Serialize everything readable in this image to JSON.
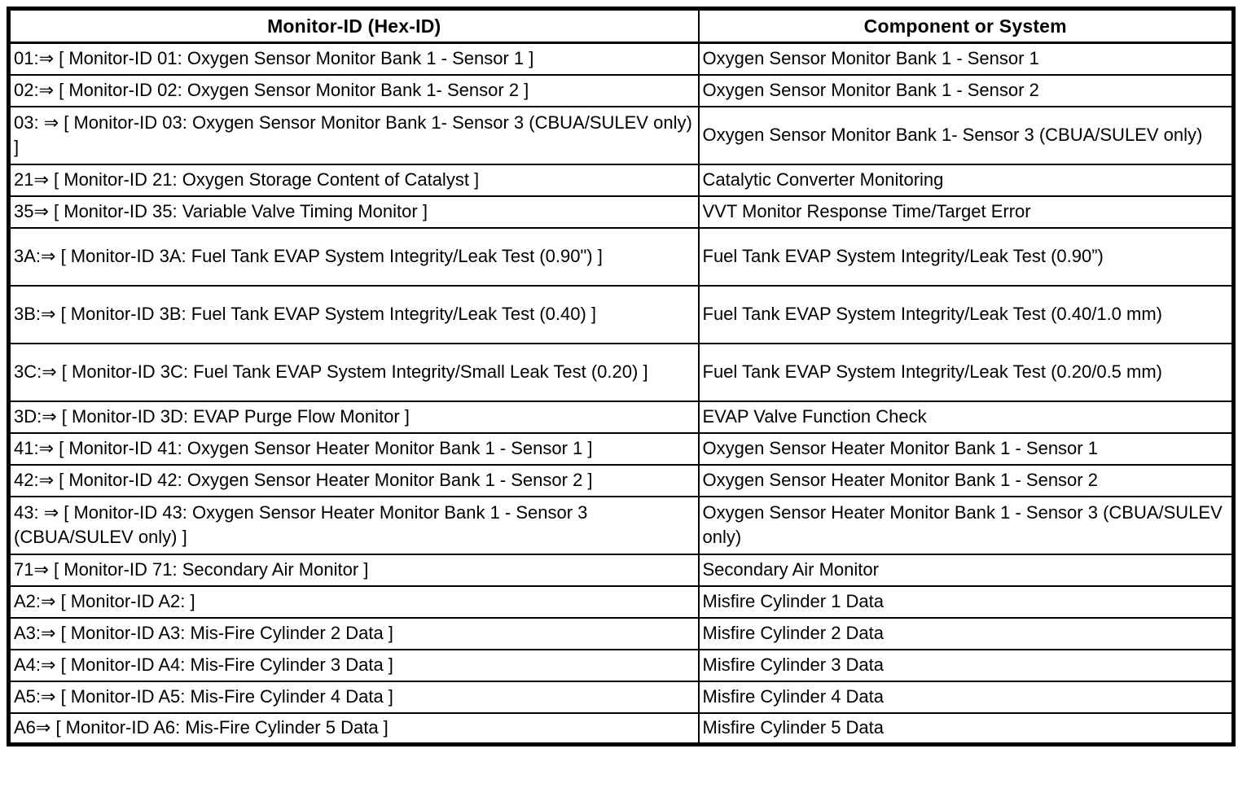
{
  "page": {
    "background_color": "#ffffff",
    "text_color": "#000000",
    "border_color": "#000000"
  },
  "table": {
    "columns": [
      "Monitor-ID (Hex-ID)",
      "Component or System"
    ],
    "rows": [
      {
        "monitor_id": "01:⇒ [ Monitor-ID 01: Oxygen Sensor Monitor Bank 1 - Sensor 1 ]",
        "component": "Oxygen Sensor Monitor Bank 1 - Sensor 1"
      },
      {
        "monitor_id": "02:⇒ [ Monitor-ID 02: Oxygen Sensor Monitor Bank 1- Sensor 2 ]",
        "component": "Oxygen Sensor Monitor Bank 1 - Sensor 2"
      },
      {
        "monitor_id": "03: ⇒ [ Monitor-ID 03: Oxygen Sensor Monitor Bank 1- Sensor 3 (CBUA/SULEV only) ]",
        "component": "Oxygen Sensor Monitor Bank 1- Sensor 3 (CBUA/SULEV only)"
      },
      {
        "monitor_id": "21⇒ [ Monitor-ID 21: Oxygen Storage Content of Catalyst ]",
        "component": "Catalytic Converter Monitoring"
      },
      {
        "monitor_id": "35⇒ [ Monitor-ID 35: Variable Valve Timing Monitor ]",
        "component": "VVT Monitor Response Time/Target Error"
      },
      {
        "monitor_id": "3A:⇒ [ Monitor-ID 3A: Fuel Tank EVAP System Integrity/Leak Test (0.90\") ]",
        "component": "Fuel Tank EVAP System Integrity/Leak Test (0.90”)"
      },
      {
        "monitor_id": "3B:⇒ [ Monitor-ID 3B: Fuel Tank EVAP System Integrity/Leak Test (0.40) ]",
        "component": "Fuel Tank EVAP System Integrity/Leak Test (0.40/1.0 mm)"
      },
      {
        "monitor_id": "3C:⇒ [ Monitor-ID 3C: Fuel Tank EVAP System Integrity/Small Leak Test (0.20) ]",
        "component": "Fuel Tank EVAP System Integrity/Leak Test (0.20/0.5 mm)"
      },
      {
        "monitor_id": "3D:⇒ [ Monitor-ID 3D: EVAP Purge Flow Monitor ]",
        "component": "EVAP Valve Function Check"
      },
      {
        "monitor_id": "41:⇒ [ Monitor-ID 41: Oxygen Sensor Heater Monitor Bank 1 - Sensor 1 ]",
        "component": "Oxygen Sensor Heater Monitor Bank 1 - Sensor 1"
      },
      {
        "monitor_id": "42:⇒ [ Monitor-ID 42: Oxygen Sensor Heater Monitor Bank 1 - Sensor 2 ]",
        "component": "Oxygen Sensor Heater Monitor Bank 1 - Sensor 2"
      },
      {
        "monitor_id": "43: ⇒ [ Monitor-ID 43: Oxygen Sensor Heater Monitor Bank 1 - Sensor 3 (CBUA/SULEV only) ]",
        "component": "Oxygen Sensor Heater Monitor Bank 1 - Sensor 3 (CBUA/SULEV only)"
      },
      {
        "monitor_id": "71⇒ [ Monitor-ID 71: Secondary Air Monitor ]",
        "component": "Secondary Air Monitor"
      },
      {
        "monitor_id": "A2:⇒ [ Monitor-ID A2: ]",
        "component": "Misfire Cylinder 1 Data"
      },
      {
        "monitor_id": "A3:⇒ [ Monitor-ID A3: Mis-Fire Cylinder 2 Data ]",
        "component": "Misfire Cylinder 2 Data"
      },
      {
        "monitor_id": "A4:⇒ [ Monitor-ID A4: Mis-Fire Cylinder 3 Data ]",
        "component": "Misfire Cylinder 3 Data"
      },
      {
        "monitor_id": "A5:⇒ [ Monitor-ID A5: Mis-Fire Cylinder 4 Data ]",
        "component": "Misfire Cylinder 4 Data"
      },
      {
        "monitor_id": "A6⇒ [ Monitor-ID A6: Mis-Fire Cylinder 5 Data ]",
        "component": "Misfire Cylinder 5 Data"
      }
    ]
  }
}
